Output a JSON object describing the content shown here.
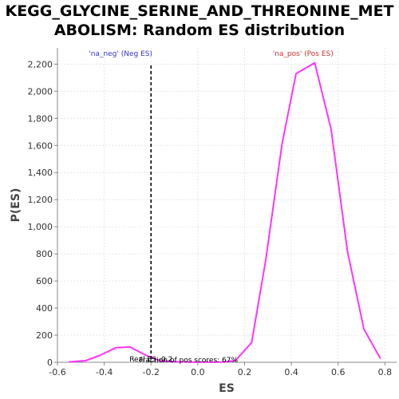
{
  "chart_data": {
    "type": "line",
    "title_line1": "KEGG_GLYCINE_SERINE_AND_THREONINE_MET",
    "title_line2": "ABOLISM: Random ES distribution",
    "xlabel": "ES",
    "ylabel": "P(ES)",
    "xlim": [
      -0.6,
      0.85
    ],
    "ylim": [
      0,
      2320
    ],
    "xticks": [
      -0.6,
      -0.4,
      -0.2,
      0.0,
      0.2,
      0.4,
      0.6,
      0.8
    ],
    "xtick_labels": [
      "-0.6",
      "-0.4",
      "-0.2",
      "0.0",
      "0.2",
      "0.4",
      "0.6",
      "0.8"
    ],
    "yticks": [
      0,
      200,
      400,
      600,
      800,
      1000,
      1200,
      1400,
      1600,
      1800,
      2000,
      2200
    ],
    "ytick_labels": [
      "0",
      "200",
      "400",
      "600",
      "800",
      "1,000",
      "1,200",
      "1,400",
      "1,600",
      "1,800",
      "2,000",
      "2,200"
    ],
    "grid": true,
    "series": [
      {
        "color": "#ff33ff",
        "x": [
          -0.55,
          -0.48,
          -0.42,
          -0.35,
          -0.29,
          -0.22,
          -0.16,
          -0.09,
          -0.03,
          0.04,
          0.1,
          0.16,
          0.23,
          0.29,
          0.36,
          0.42,
          0.5,
          0.57,
          0.64,
          0.71,
          0.78
        ],
        "y": [
          3,
          12,
          50,
          108,
          113,
          50,
          10,
          4,
          2,
          2,
          2,
          12,
          145,
          750,
          1610,
          2130,
          2210,
          1720,
          820,
          245,
          30
        ]
      }
    ],
    "annotations": {
      "neg_label": "'na_neg' (Neg ES)",
      "neg_color": "#3333cc",
      "pos_label": "'na_pos' (Pos ES)",
      "pos_color": "#cc3333",
      "real_es_text": "Real ES -0.2",
      "real_es_x": -0.2,
      "overlap_text": "Fraction of pos scores: 67%"
    }
  }
}
